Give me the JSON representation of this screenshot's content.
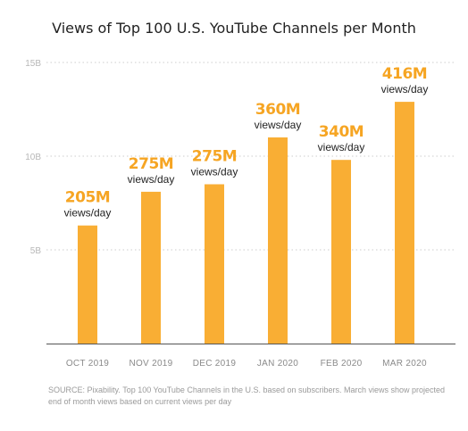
{
  "title": "Views of Top 100 U.S. YouTube Channels per Month",
  "source": "SOURCE: Pixability. Top 100 YouTube Channels in the U.S. based on subscribers. March views show projected end of month views based on current views per day",
  "colors": {
    "bar": "#f9ae34",
    "annotation": "#f6a523",
    "grid": "#cccccc",
    "axis": "#555555"
  },
  "chart_data": {
    "type": "bar",
    "title": "Views of Top 100 U.S. YouTube Channels per Month",
    "xlabel": "",
    "ylabel": "",
    "categories": [
      "OCT 2019",
      "NOV 2019",
      "DEC 2019",
      "JAN 2020",
      "FEB 2020",
      "MAR 2020"
    ],
    "values": [
      6.3,
      8.1,
      8.5,
      11.0,
      9.8,
      12.9
    ],
    "ylim": [
      0,
      15
    ],
    "yticks": [
      {
        "value": 5,
        "label": "5B"
      },
      {
        "value": 10,
        "label": "10B"
      },
      {
        "value": 15,
        "label": "15B"
      }
    ],
    "annotations": [
      {
        "value": "205M",
        "sub": "views/day"
      },
      {
        "value": "275M",
        "sub": "views/day"
      },
      {
        "value": "275M",
        "sub": "views/day"
      },
      {
        "value": "360M",
        "sub": "views/day"
      },
      {
        "value": "340M",
        "sub": "views/day"
      },
      {
        "value": "416M",
        "sub": "views/day"
      }
    ],
    "grid": true,
    "legend": "none"
  }
}
